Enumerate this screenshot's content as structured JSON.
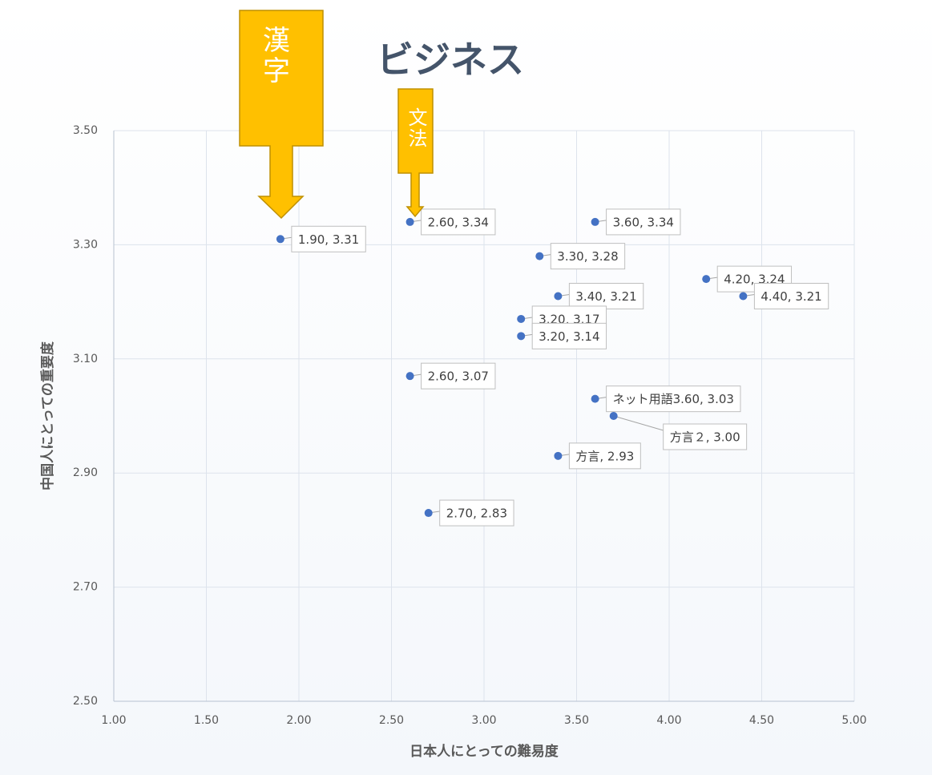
{
  "chart_data": {
    "type": "scatter",
    "title": "ビジネス",
    "x_label": "日本人にとっての難易度",
    "y_label": "中国人にとっての重要度",
    "annotations": [
      "漢字",
      "文法"
    ],
    "xlim": [
      1,
      5
    ],
    "xticks": [
      {
        "value": 1,
        "label": "1.00"
      },
      {
        "value": 1.5,
        "label": "1.50"
      },
      {
        "value": 2,
        "label": "2.00"
      },
      {
        "value": 2.5,
        "label": "2.50"
      },
      {
        "value": 3,
        "label": "3.00"
      },
      {
        "value": 3.5,
        "label": "3.50"
      },
      {
        "value": 4,
        "label": "4.00"
      },
      {
        "value": 4.5,
        "label": "4.50"
      },
      {
        "value": 5,
        "label": "5.00"
      }
    ],
    "ylim": [
      2.5,
      3.5
    ],
    "yticks": [
      {
        "value": 2.5,
        "label": "2.50"
      },
      {
        "value": 2.7,
        "label": "2.70"
      },
      {
        "value": 2.9,
        "label": "2.90"
      },
      {
        "value": 3.1,
        "label": "3.10"
      },
      {
        "value": 3.3,
        "label": "3.30"
      },
      {
        "value": 3.5,
        "label": "3.50"
      }
    ],
    "grid": true,
    "series": [
      {
        "color": "#4472c4",
        "x": [
          1.9,
          2.6,
          3.6,
          3.3,
          4.2,
          3.4,
          4.4,
          3.2,
          3.2,
          2.6,
          3.6,
          3.7,
          3.4,
          2.7
        ],
        "values": [
          3.31,
          3.34,
          3.34,
          3.28,
          3.24,
          3.21,
          3.21,
          3.17,
          3.14,
          3.07,
          3.03,
          3.0,
          2.93,
          2.83
        ],
        "value_labels": [
          "1.90, 3.31",
          "2.60, 3.34",
          "3.60, 3.34",
          "3.30, 3.28",
          "4.20, 3.24",
          "3.40, 3.21",
          "4.40, 3.21",
          "3.20, 3.17",
          "3.20, 3.14",
          "2.60, 3.07",
          "ネット用語3.60, 3.03",
          "方言２, 3.00",
          "方言, 2.93",
          "2.70, 2.83"
        ]
      }
    ]
  }
}
